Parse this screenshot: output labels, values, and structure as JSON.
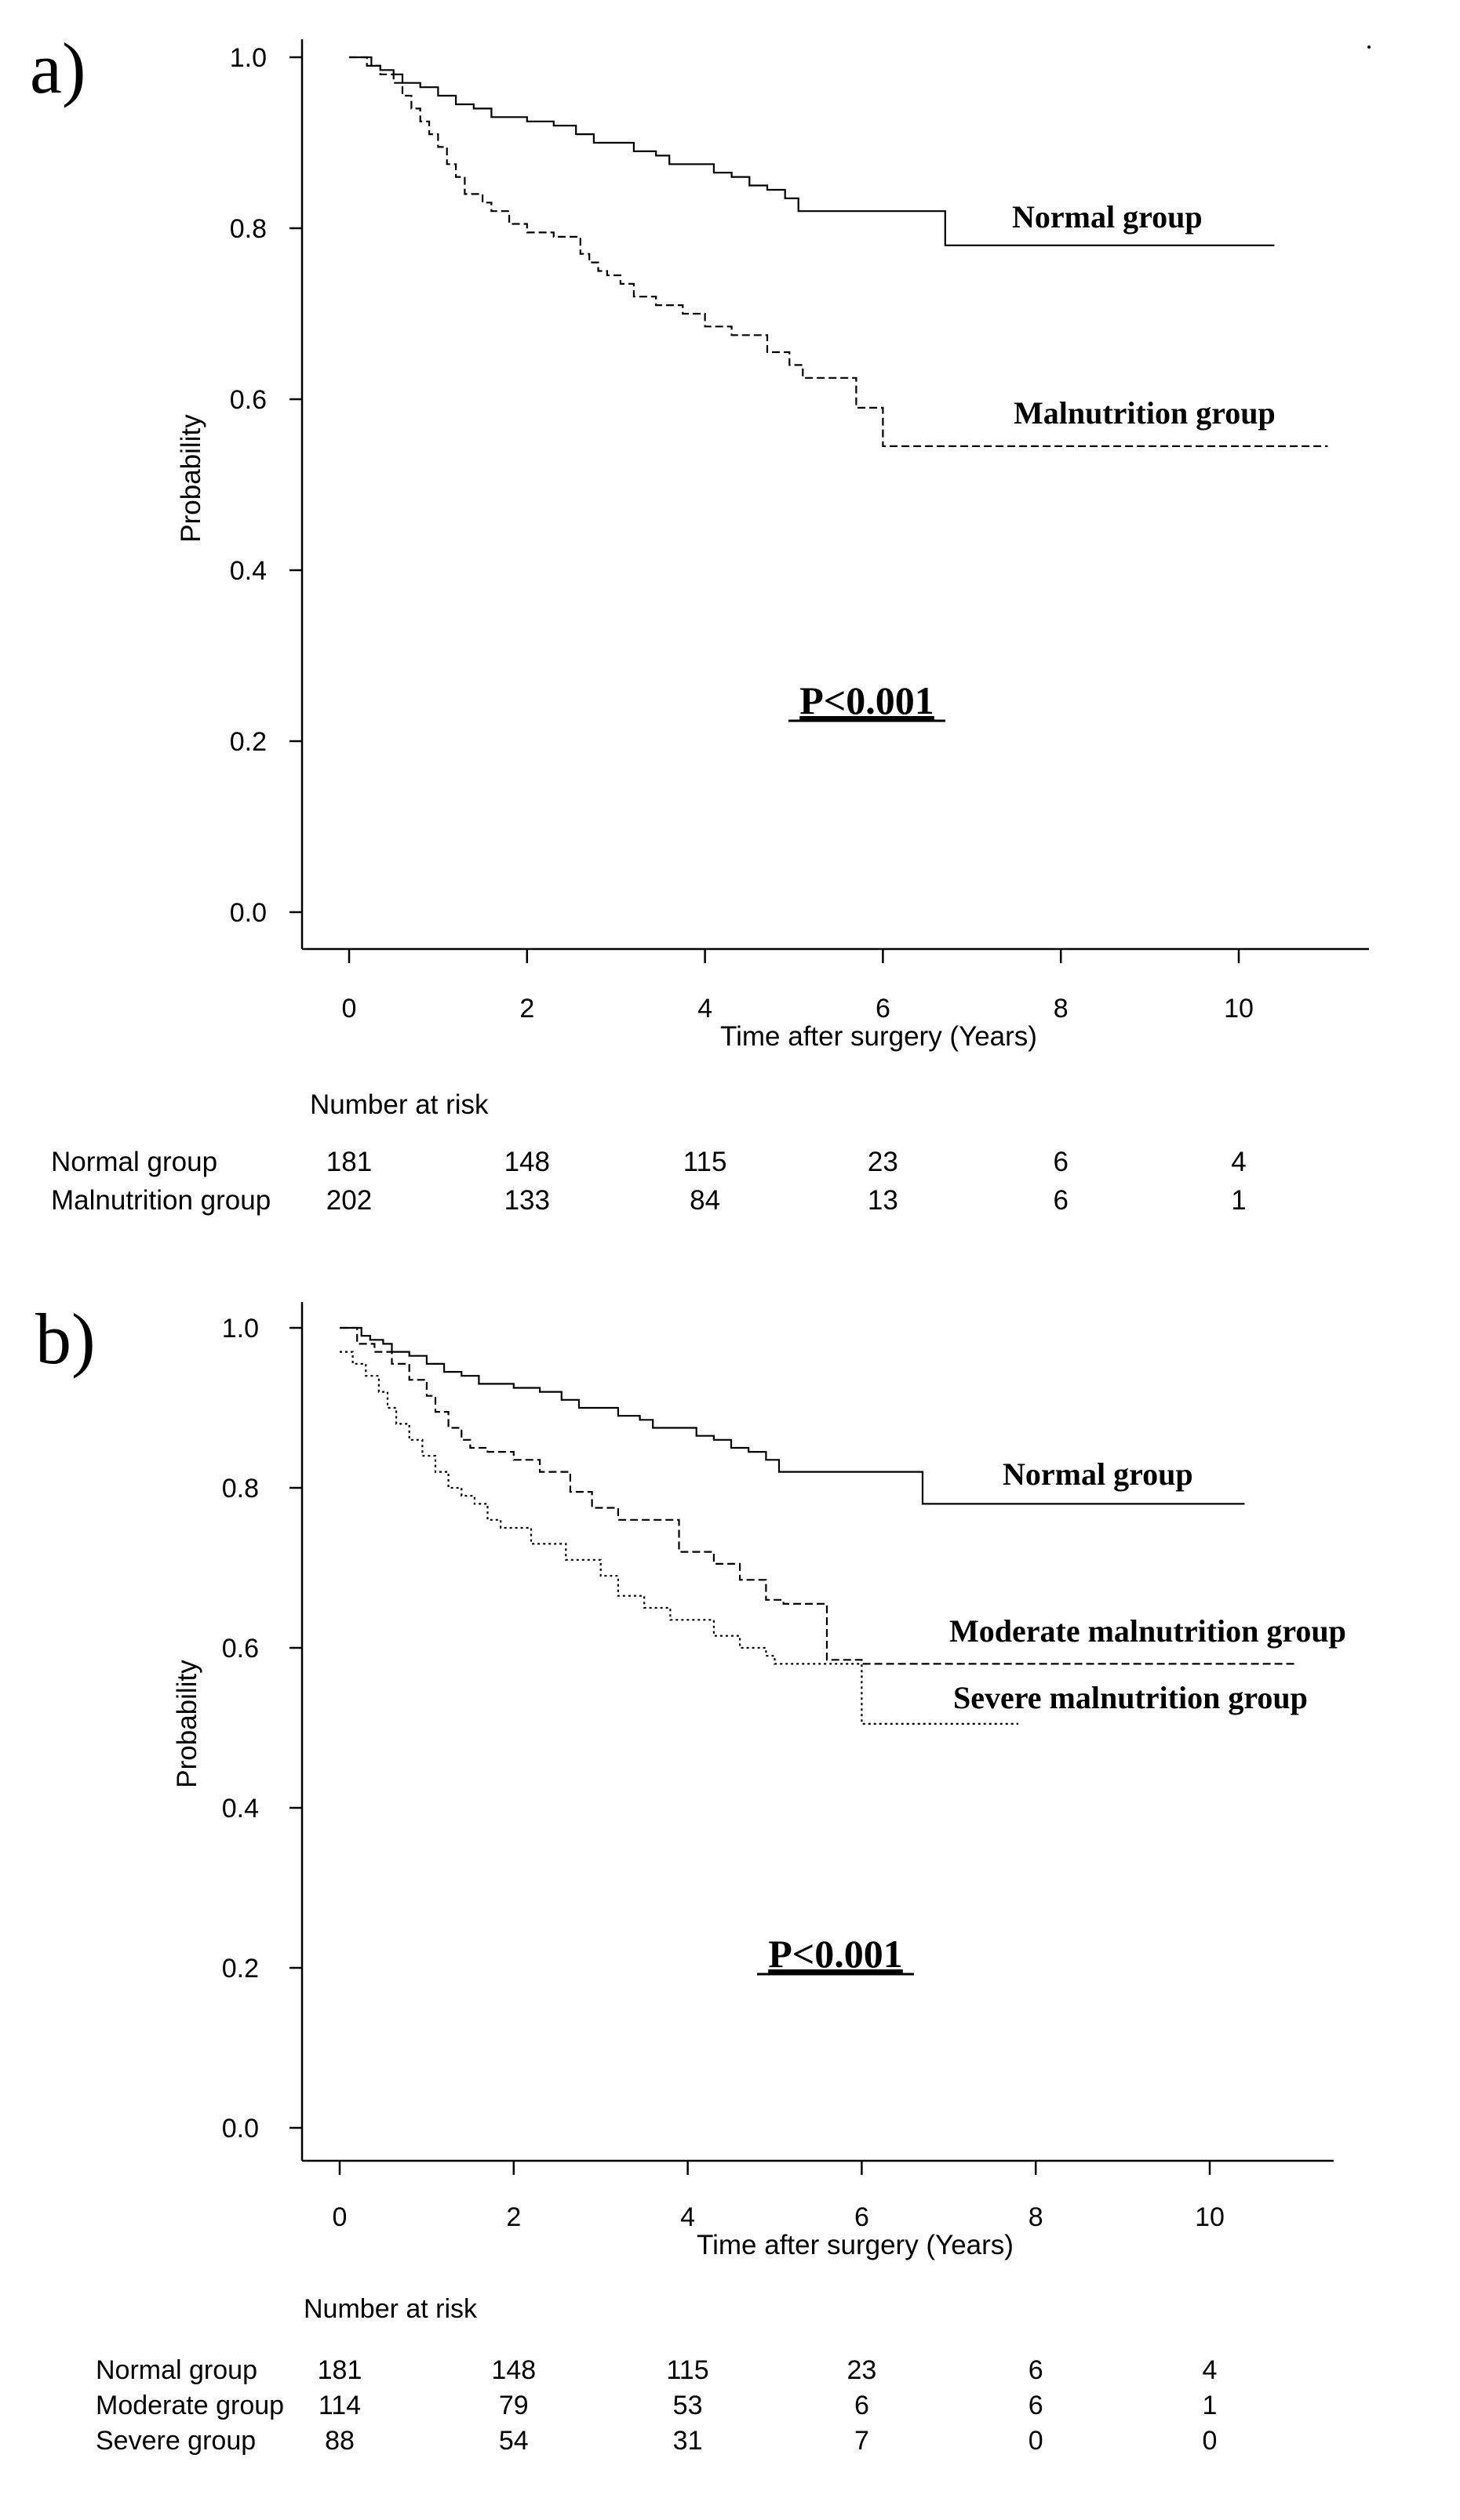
{
  "chart_data": [
    {
      "panel_label": "a)",
      "type": "line",
      "subtype": "kaplan-meier",
      "xlabel": "Time after surgery (Years)",
      "ylabel": "Probability",
      "xlim": [
        -0.5,
        11.5
      ],
      "ylim": [
        -0.05,
        1.02
      ],
      "xticks": [
        0,
        2,
        4,
        6,
        8,
        10
      ],
      "yticks": [
        0.0,
        0.2,
        0.4,
        0.6,
        0.8,
        1.0
      ],
      "xtick_labels": [
        "0",
        "2",
        "4",
        "6",
        "8",
        "10"
      ],
      "ytick_labels": [
        "0.0",
        "0.2",
        "0.4",
        "0.6",
        "0.8",
        "1.0"
      ],
      "annotation": "P<0.001",
      "series": [
        {
          "name": "Normal group",
          "style": "solid",
          "x": [
            0,
            0.25,
            0.35,
            0.5,
            0.6,
            0.8,
            1.0,
            1.2,
            1.4,
            1.6,
            2.0,
            2.3,
            2.55,
            2.75,
            3.2,
            3.45,
            3.6,
            4.1,
            4.3,
            4.5,
            4.7,
            4.9,
            5.05,
            5.3,
            6.7,
            10.4
          ],
          "y": [
            1.0,
            0.99,
            0.985,
            0.98,
            0.97,
            0.965,
            0.955,
            0.945,
            0.94,
            0.93,
            0.925,
            0.92,
            0.91,
            0.9,
            0.89,
            0.885,
            0.875,
            0.865,
            0.86,
            0.85,
            0.845,
            0.835,
            0.82,
            0.82,
            0.78,
            0.78
          ]
        },
        {
          "name": "Malnutrition group",
          "style": "dashed",
          "x": [
            0,
            0.2,
            0.35,
            0.5,
            0.6,
            0.7,
            0.8,
            0.9,
            1.0,
            1.1,
            1.2,
            1.3,
            1.5,
            1.6,
            1.8,
            2.0,
            2.3,
            2.6,
            2.7,
            2.8,
            2.9,
            3.05,
            3.2,
            3.45,
            3.75,
            4.0,
            4.3,
            4.7,
            4.95,
            5.1,
            5.7,
            6.0,
            11.0
          ],
          "y": [
            1.0,
            0.99,
            0.98,
            0.97,
            0.955,
            0.94,
            0.925,
            0.91,
            0.895,
            0.875,
            0.86,
            0.84,
            0.83,
            0.82,
            0.805,
            0.795,
            0.79,
            0.77,
            0.76,
            0.75,
            0.745,
            0.735,
            0.72,
            0.71,
            0.7,
            0.685,
            0.675,
            0.655,
            0.64,
            0.625,
            0.59,
            0.545,
            0.545
          ]
        }
      ],
      "risk_table": {
        "title": "Number at risk",
        "time_points": [
          0,
          2,
          4,
          6,
          8,
          10
        ],
        "rows": [
          {
            "label": "Normal group",
            "values": [
              "181",
              "148",
              "115",
              "23",
              "6",
              "4"
            ]
          },
          {
            "label": "Malnutrition group",
            "values": [
              "202",
              "133",
              "84",
              "13",
              "6",
              "1"
            ]
          }
        ]
      }
    },
    {
      "panel_label": "b)",
      "type": "line",
      "subtype": "kaplan-meier",
      "xlabel": "Time after surgery (Years)",
      "ylabel": "Probability",
      "xlim": [
        -0.5,
        11.5
      ],
      "ylim": [
        -0.05,
        1.02
      ],
      "xticks": [
        0,
        2,
        4,
        6,
        8,
        10
      ],
      "yticks": [
        0.0,
        0.2,
        0.4,
        0.6,
        0.8,
        1.0
      ],
      "xtick_labels": [
        "0",
        "2",
        "4",
        "6",
        "8",
        "10"
      ],
      "ytick_labels": [
        "0.0",
        "0.2",
        "0.4",
        "0.6",
        "0.8",
        "1.0"
      ],
      "annotation": "P<0.001",
      "series": [
        {
          "name": "Normal group",
          "style": "solid",
          "x": [
            0,
            0.25,
            0.35,
            0.5,
            0.6,
            0.8,
            1.0,
            1.2,
            1.4,
            1.6,
            2.0,
            2.3,
            2.55,
            2.75,
            3.2,
            3.45,
            3.6,
            4.1,
            4.3,
            4.5,
            4.7,
            4.9,
            5.05,
            5.3,
            6.7,
            10.4
          ],
          "y": [
            1.0,
            0.99,
            0.985,
            0.98,
            0.97,
            0.965,
            0.955,
            0.945,
            0.94,
            0.93,
            0.925,
            0.92,
            0.91,
            0.9,
            0.89,
            0.885,
            0.875,
            0.865,
            0.86,
            0.85,
            0.845,
            0.835,
            0.82,
            0.82,
            0.78,
            0.78
          ]
        },
        {
          "name": "Moderate malnutrition group",
          "style": "dashed",
          "x": [
            0,
            0.2,
            0.4,
            0.6,
            0.8,
            1.0,
            1.1,
            1.25,
            1.4,
            1.5,
            1.7,
            2.0,
            2.3,
            2.65,
            2.9,
            3.2,
            3.9,
            4.3,
            4.6,
            4.9,
            5.1,
            5.6,
            6.0,
            11.0
          ],
          "y": [
            1.0,
            0.98,
            0.97,
            0.955,
            0.935,
            0.915,
            0.895,
            0.875,
            0.86,
            0.85,
            0.845,
            0.835,
            0.82,
            0.795,
            0.775,
            0.76,
            0.72,
            0.705,
            0.685,
            0.66,
            0.655,
            0.585,
            0.58,
            0.58
          ]
        },
        {
          "name": "Severe malnutrition group",
          "style": "dotted",
          "x": [
            0,
            0.15,
            0.3,
            0.45,
            0.55,
            0.65,
            0.8,
            0.95,
            1.1,
            1.25,
            1.4,
            1.55,
            1.7,
            1.85,
            2.2,
            2.6,
            3.0,
            3.2,
            3.5,
            3.8,
            4.3,
            4.6,
            4.9,
            5.0,
            6.0,
            7.8
          ],
          "y": [
            0.97,
            0.955,
            0.94,
            0.92,
            0.9,
            0.88,
            0.86,
            0.84,
            0.82,
            0.8,
            0.79,
            0.78,
            0.76,
            0.75,
            0.73,
            0.71,
            0.69,
            0.665,
            0.65,
            0.635,
            0.615,
            0.6,
            0.59,
            0.58,
            0.505,
            0.505
          ]
        }
      ],
      "risk_table": {
        "title": "Number at risk",
        "time_points": [
          0,
          2,
          4,
          6,
          8,
          10
        ],
        "rows": [
          {
            "label": "Normal group",
            "values": [
              "181",
              "148",
              "115",
              "23",
              "6",
              "4"
            ]
          },
          {
            "label": "Moderate group",
            "values": [
              "114",
              "79",
              "53",
              "6",
              "6",
              "1"
            ]
          },
          {
            "label": "Severe group",
            "values": [
              "88",
              "54",
              "31",
              "7",
              "0",
              "0"
            ]
          }
        ]
      }
    }
  ]
}
